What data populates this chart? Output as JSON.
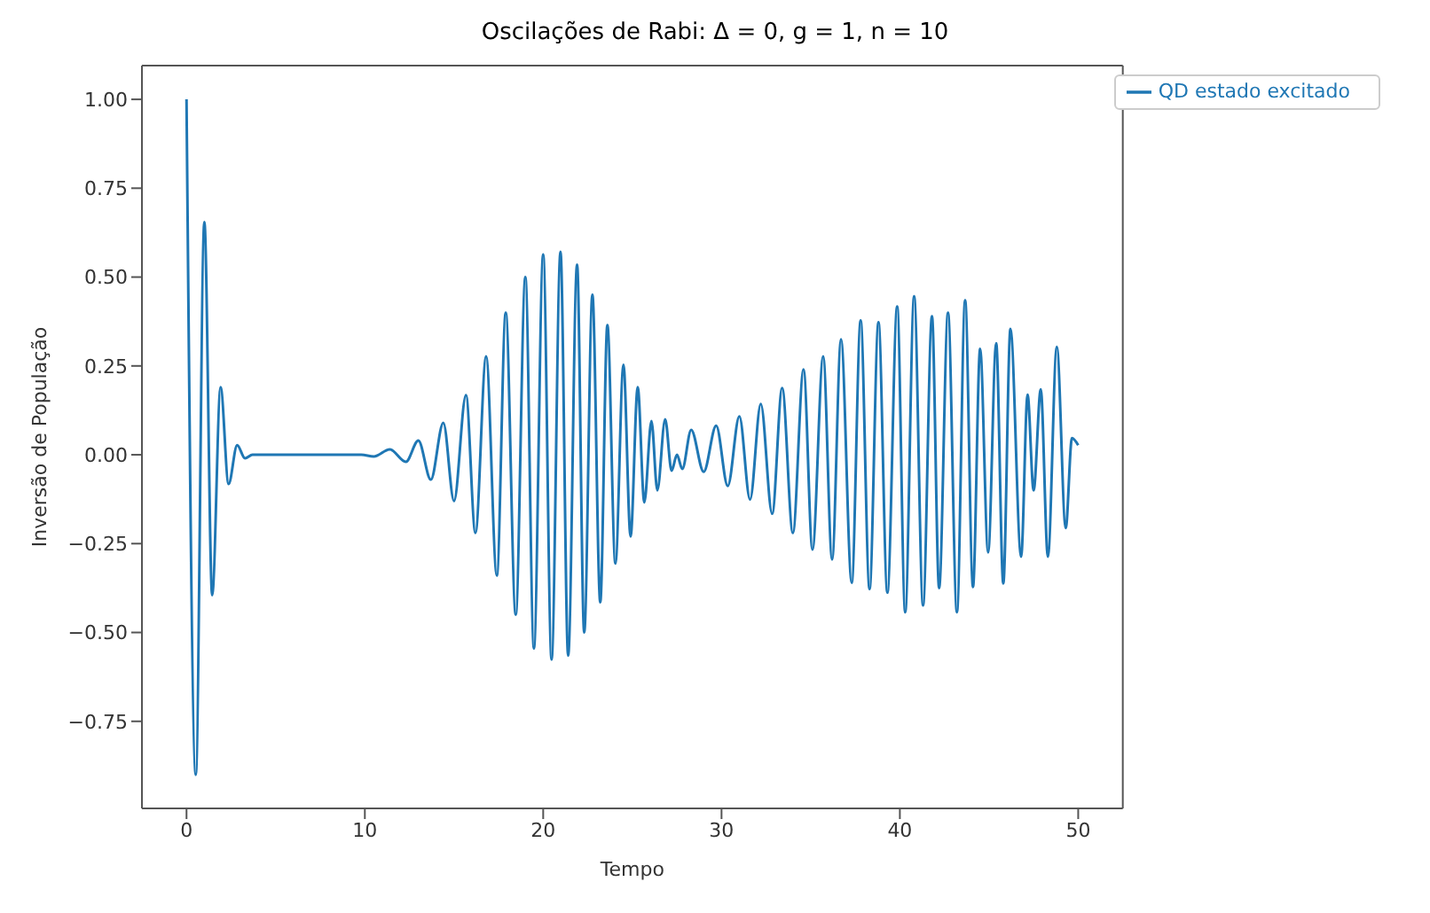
{
  "chart_data": {
    "type": "line",
    "title": "Oscilações de Rabi: Δ = 0, g = 1, n = 10",
    "xlabel": "Tempo",
    "ylabel": "Inversão de População",
    "xlim": [
      -2.5,
      52.5
    ],
    "xticks": [
      0,
      10,
      20,
      30,
      40,
      50
    ],
    "ylim": [
      -0.995,
      1.095
    ],
    "yticks": [
      {
        "value": -0.75,
        "label": "−0.75"
      },
      {
        "value": -0.5,
        "label": "−0.50"
      },
      {
        "value": -0.25,
        "label": "−0.25"
      },
      {
        "value": 0,
        "label": "0.00"
      },
      {
        "value": 0.25,
        "label": "0.25"
      },
      {
        "value": 0.5,
        "label": "0.50"
      },
      {
        "value": 0.75,
        "label": "0.75"
      },
      {
        "value": 1,
        "label": "1.00"
      }
    ],
    "grid": false,
    "legend": "top right",
    "marker": "none",
    "line_style": "solid",
    "series": [
      {
        "name": "QD estado excitado",
        "color": "#1f77b4",
        "x": [
          0,
          0.52,
          1.0,
          1.44,
          1.91,
          2.36,
          2.84,
          3.28,
          3.7,
          9.8,
          10.5,
          11.4,
          12.3,
          13.0,
          13.7,
          14.4,
          15.0,
          15.67,
          16.2,
          16.8,
          17.4,
          17.9,
          18.46,
          19.0,
          19.48,
          20.0,
          20.47,
          20.97,
          21.4,
          21.9,
          22.3,
          22.76,
          23.2,
          23.6,
          24.05,
          24.5,
          24.9,
          25.3,
          25.67,
          26.07,
          26.4,
          26.84,
          27.2,
          27.5,
          27.8,
          28.3,
          29.0,
          29.7,
          30.35,
          31.0,
          31.6,
          32.2,
          32.84,
          33.4,
          34.0,
          34.6,
          35.1,
          35.7,
          36.2,
          36.7,
          37.3,
          37.8,
          38.3,
          38.8,
          39.3,
          39.85,
          40.3,
          40.8,
          41.3,
          41.8,
          42.2,
          42.7,
          43.2,
          43.66,
          44.1,
          44.5,
          44.95,
          45.4,
          45.8,
          46.2,
          46.8,
          47.16,
          47.5,
          47.9,
          48.3,
          48.8,
          49.3,
          49.65,
          50
        ],
        "values": [
          1.0,
          -0.9,
          0.655,
          -0.395,
          0.19,
          -0.082,
          0.027,
          -0.01,
          0,
          0,
          -0.005,
          0.015,
          -0.02,
          0.04,
          -0.07,
          0.09,
          -0.13,
          0.168,
          -0.22,
          0.277,
          -0.34,
          0.4,
          -0.45,
          0.5,
          -0.545,
          0.564,
          -0.576,
          0.571,
          -0.565,
          0.535,
          -0.5,
          0.45,
          -0.415,
          0.365,
          -0.306,
          0.253,
          -0.23,
          0.19,
          -0.134,
          0.095,
          -0.1,
          0.1,
          -0.045,
          0,
          -0.04,
          0.07,
          -0.048,
          0.082,
          -0.088,
          0.108,
          -0.126,
          0.143,
          -0.166,
          0.188,
          -0.22,
          0.24,
          -0.267,
          0.277,
          -0.295,
          0.325,
          -0.36,
          0.378,
          -0.378,
          0.373,
          -0.388,
          0.417,
          -0.443,
          0.446,
          -0.424,
          0.39,
          -0.375,
          0.4,
          -0.443,
          0.435,
          -0.372,
          0.298,
          -0.275,
          0.314,
          -0.362,
          0.354,
          -0.287,
          0.169,
          -0.1,
          0.184,
          -0.287,
          0.304,
          -0.206,
          0.047,
          0.027
        ]
      }
    ]
  }
}
